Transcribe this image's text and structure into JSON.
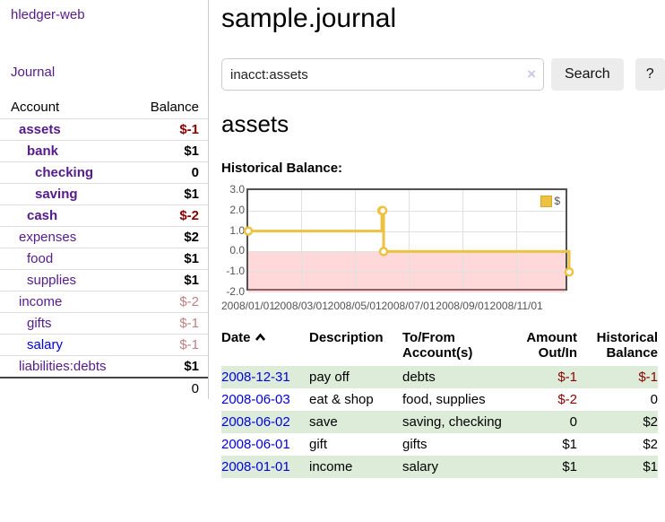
{
  "sidebar": {
    "brand": "hledger-web",
    "nav": {
      "journal": "Journal"
    },
    "accounts_table": {
      "headers": {
        "account": "Account",
        "balance": "Balance"
      },
      "rows": [
        {
          "name": "assets",
          "balance": "$-1",
          "level": 1,
          "in_current": true,
          "negative": "strong"
        },
        {
          "name": "bank",
          "balance": "$1",
          "level": 2,
          "in_current": true,
          "negative": null
        },
        {
          "name": "checking",
          "balance": "0",
          "level": 3,
          "in_current": true,
          "negative": null
        },
        {
          "name": "saving",
          "balance": "$1",
          "level": 3,
          "in_current": true,
          "negative": null
        },
        {
          "name": "cash",
          "balance": "$-2",
          "level": 2,
          "in_current": true,
          "negative": "strong"
        },
        {
          "name": "expenses",
          "balance": "$2",
          "level": 1,
          "in_current": false,
          "negative": null
        },
        {
          "name": "food",
          "balance": "$1",
          "level": 2,
          "in_current": false,
          "negative": null
        },
        {
          "name": "supplies",
          "balance": "$1",
          "level": 2,
          "in_current": false,
          "negative": null
        },
        {
          "name": "income",
          "balance": "$-2",
          "level": 1,
          "in_current": false,
          "negative": "muted"
        },
        {
          "name": "gifts",
          "balance": "$-1",
          "level": 2,
          "in_current": false,
          "negative": "muted"
        },
        {
          "name": "salary",
          "balance": "$-1",
          "level": 2,
          "in_current": false,
          "negative": "muted",
          "unvisited": true
        },
        {
          "name": "liabilities:debts",
          "balance": "$1",
          "level": 1,
          "in_current": false,
          "negative": null
        }
      ],
      "total": "0"
    }
  },
  "main": {
    "title": "sample.journal",
    "search": {
      "value": "inacct:assets",
      "clear_icon": "×",
      "button_label": "Search",
      "help_label": "?"
    },
    "account_title": "assets",
    "chart_label": "Historical Balance:"
  },
  "chart_data": {
    "type": "line",
    "style": "step",
    "title": "Historical Balance",
    "legend": {
      "label": "$",
      "position": "top-right"
    },
    "x_range": [
      "2008-01-01",
      "2008-12-31"
    ],
    "ylim": [
      -2.0,
      3.0
    ],
    "yticks": [
      "3.0",
      "2.0",
      "1.0",
      "0.0",
      "-1.0",
      "-2.0"
    ],
    "ytick_values": [
      3,
      2,
      1,
      0,
      -1,
      -2
    ],
    "xticks": [
      {
        "label": "2008/01/01",
        "date": "2008-01-01"
      },
      {
        "label": "2008/03/01",
        "date": "2008-03-01"
      },
      {
        "label": "2008/05/01",
        "date": "2008-05-01"
      },
      {
        "label": "2008/07/01",
        "date": "2008-07-01"
      },
      {
        "label": "2008/09/01",
        "date": "2008-09-01"
      },
      {
        "label": "2008/11/01",
        "date": "2008-11-01"
      }
    ],
    "points": [
      {
        "x": "2008-01-01",
        "y": 1
      },
      {
        "x": "2008-06-01",
        "y": 2
      },
      {
        "x": "2008-06-02",
        "y": 2
      },
      {
        "x": "2008-06-03",
        "y": 0
      },
      {
        "x": "2008-12-31",
        "y": -1
      }
    ],
    "colors": {
      "series": "#edc240",
      "series_border": "#d3a92c",
      "zero_line": "#8b0000",
      "negative_region": "rgba(255,140,140,0.33)",
      "axis_text": "#545454"
    }
  },
  "register": {
    "headers": {
      "date": "Date",
      "sort_icon": "chevron-up",
      "description": "Description",
      "accounts": "To/From Account(s)",
      "amount": "Amount Out/In",
      "balance": "Historical Balance"
    },
    "rows": [
      {
        "date": "2008-12-31",
        "description": "pay off",
        "accounts": "debts",
        "amount": "$-1",
        "balance": "$-1",
        "amount_neg": true,
        "balance_neg": true
      },
      {
        "date": "2008-06-03",
        "description": "eat & shop",
        "accounts": "food, supplies",
        "amount": "$-2",
        "balance": "0",
        "amount_neg": true,
        "balance_neg": false
      },
      {
        "date": "2008-06-02",
        "description": "save",
        "accounts": "saving, checking",
        "amount": "0",
        "balance": "$2",
        "amount_neg": false,
        "balance_neg": false
      },
      {
        "date": "2008-06-01",
        "description": "gift",
        "accounts": "gifts",
        "amount": "$1",
        "balance": "$2",
        "amount_neg": false,
        "balance_neg": false
      },
      {
        "date": "2008-01-01",
        "description": "income",
        "accounts": "salary",
        "amount": "$1",
        "balance": "$1",
        "amount_neg": false,
        "balance_neg": false
      }
    ]
  },
  "colors": {
    "link_visited": "#551a8b",
    "link_unvisited": "#0000e0",
    "negative_strong": "#8b0000",
    "negative_muted": "#c08080",
    "row_highlight_green": "#ddecd9"
  }
}
